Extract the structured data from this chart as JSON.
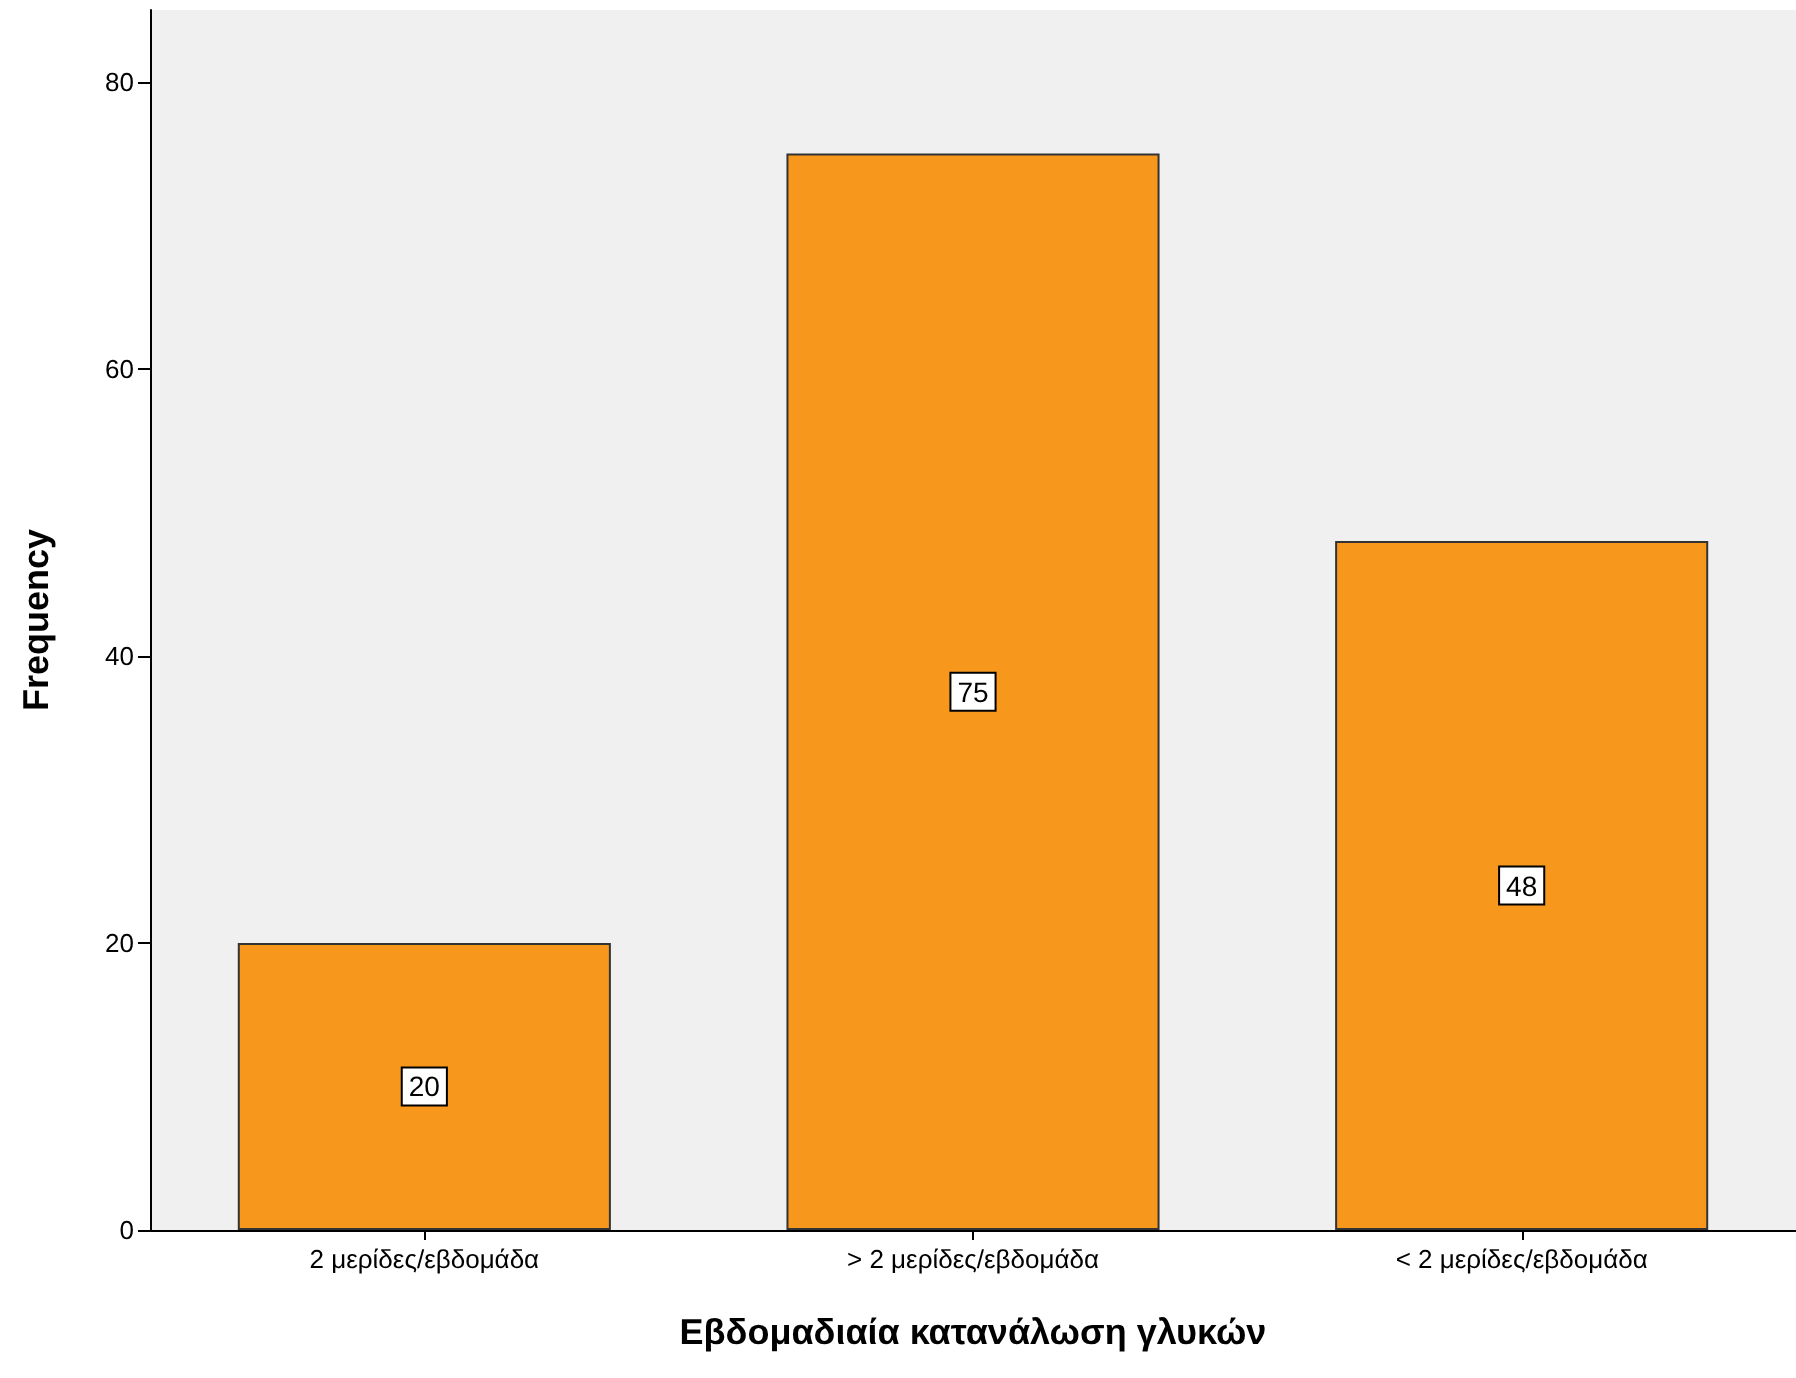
{
  "chart_data": {
    "type": "bar",
    "xlabel": "Εβδομαδιαία κατανάλωση γλυκών",
    "ylabel": "Frequency",
    "categories": [
      "2 μερίδες/εβδομάδα",
      "> 2 μερίδες/εβδομάδα",
      "< 2 μερίδες/εβδομάδα"
    ],
    "values": [
      20,
      75,
      48
    ],
    "color": "#f7981d",
    "ylim": [
      0,
      85
    ],
    "yticks": [
      0,
      20,
      40,
      60,
      80
    ],
    "grid": false,
    "data_labels": true
  }
}
